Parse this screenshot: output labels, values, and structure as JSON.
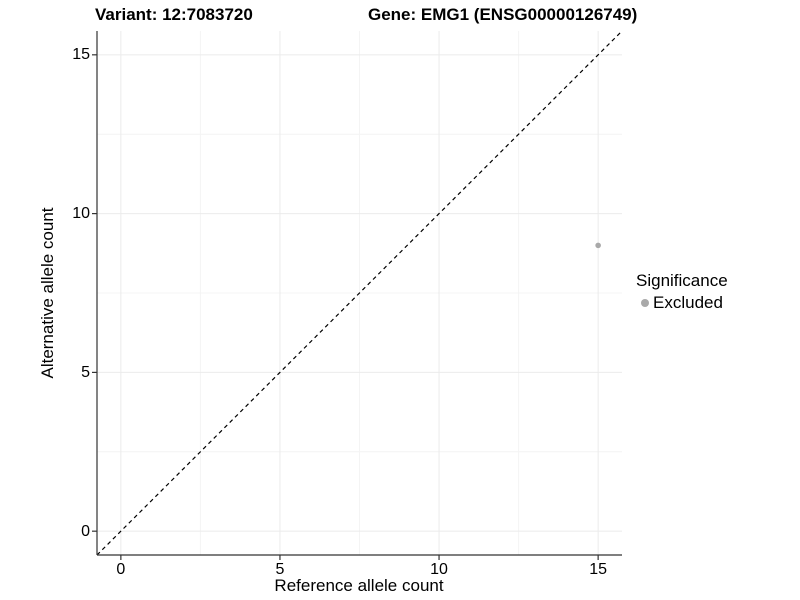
{
  "titles": {
    "variant": "Variant: 12:7083720",
    "gene": "Gene: EMG1 (ENSG00000126749)"
  },
  "colors": {
    "background": "#ffffff",
    "text": "#000000",
    "axis_line": "#333333",
    "tick_mark": "#333333",
    "grid_major": "#ebebeb",
    "grid_minor": "#f4f4f4",
    "dashed_line": "#000000",
    "point": "#a9a9a9"
  },
  "chart_data": {
    "type": "scatter",
    "title": "Variant: 12:7083720   Gene: EMG1 (ENSG00000126749)",
    "xlabel": "Reference allele count",
    "ylabel": "Alternative allele count",
    "xlim": [
      -0.75,
      15.75
    ],
    "ylim": [
      -0.75,
      15.75
    ],
    "x_ticks": [
      0,
      5,
      10,
      15
    ],
    "y_ticks": [
      0,
      5,
      10,
      15
    ],
    "x_minor_ticks": [
      2.5,
      7.5,
      12.5
    ],
    "y_minor_ticks": [
      2.5,
      7.5,
      12.5
    ],
    "grid": true,
    "legend": {
      "title": "Significance",
      "position": "right"
    },
    "series": [
      {
        "name": "Excluded",
        "color": "#a9a9a9",
        "marker": "circle",
        "marker_radius": 2.8,
        "points": [
          [
            15,
            9
          ]
        ]
      }
    ],
    "reference_line": {
      "type": "identity y=x",
      "style": "dashed",
      "color": "#000000"
    }
  }
}
